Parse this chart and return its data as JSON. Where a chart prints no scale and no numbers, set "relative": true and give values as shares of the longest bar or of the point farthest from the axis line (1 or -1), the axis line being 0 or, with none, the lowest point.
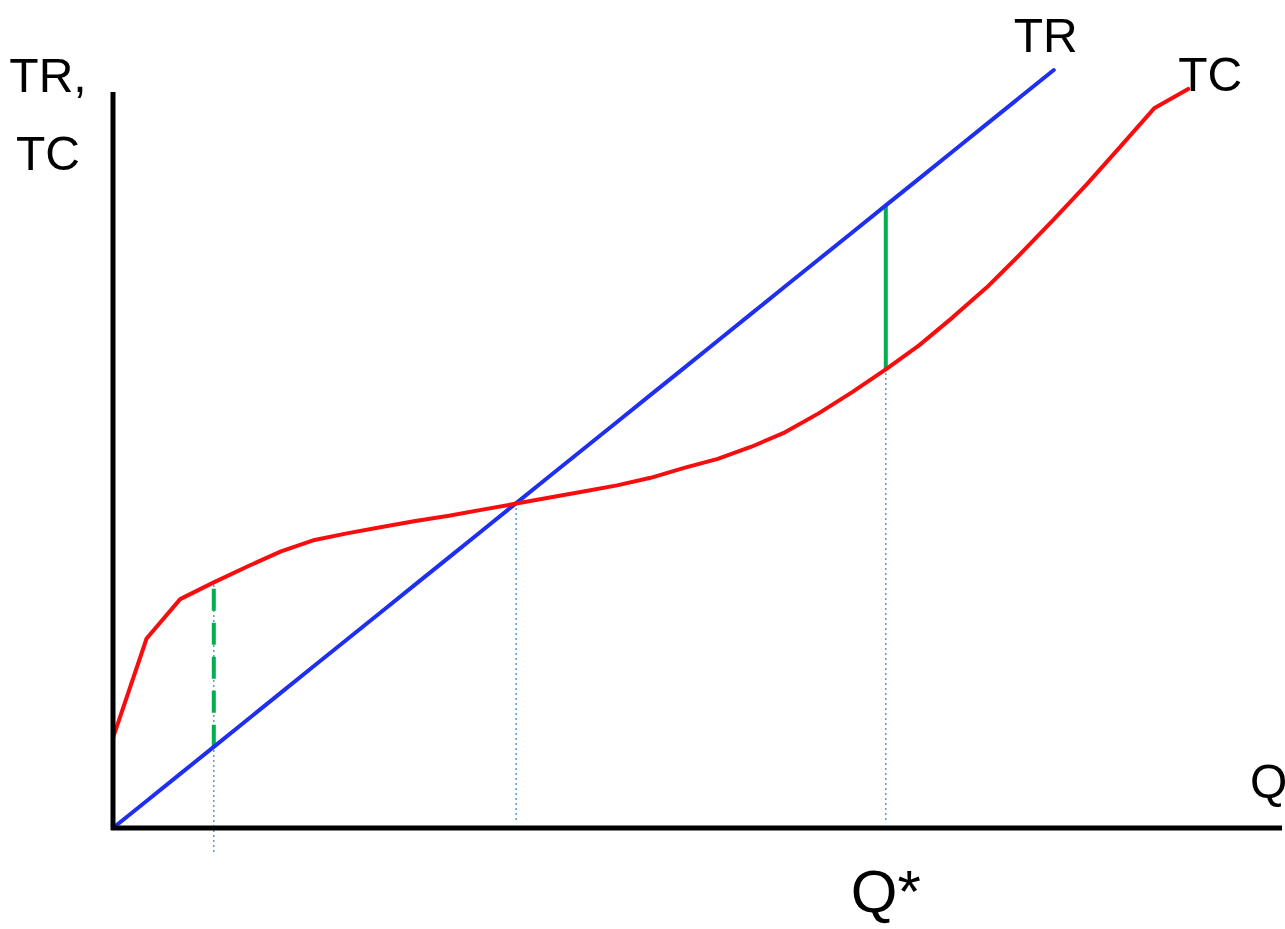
{
  "chart_data": {
    "type": "line",
    "relative": true,
    "xlabel": "Q",
    "ylabel": "TR, TC",
    "categories": [
      null,
      null,
      null,
      null,
      null,
      null,
      null,
      null,
      null,
      null,
      null,
      null,
      null,
      null,
      null,
      null,
      null,
      null,
      null,
      null,
      null,
      null,
      null,
      null,
      null,
      null,
      null,
      null,
      null,
      null,
      null,
      null,
      null,
      null,
      null,
      null
    ],
    "series": [
      {
        "name": "TR",
        "color": "#1f2ff0",
        "values": [
          0,
          0.0357,
          0.0714,
          0.1071,
          0.1429,
          0.1786,
          0.2143,
          0.25,
          0.2857,
          0.3214,
          0.3571,
          0.3929,
          0.4286,
          0.4643,
          0.5,
          0.5357,
          0.5714,
          0.6071,
          0.6429,
          0.6786,
          0.7143,
          0.75,
          0.7857,
          0.8214,
          0.8571,
          0.8929,
          0.9286,
          0.9643,
          1,
          null,
          null,
          null,
          null,
          null,
          null,
          null
        ]
      },
      {
        "name": "TC",
        "color": "#f70d0d",
        "values": [
          0.119,
          0.25,
          0.302,
          0.324,
          0.345,
          0.365,
          0.38,
          0.389,
          0.397,
          0.405,
          0.412,
          0.42,
          0.428,
          0.436,
          0.444,
          0.452,
          0.462,
          0.475,
          0.487,
          0.503,
          0.522,
          0.547,
          0.575,
          0.605,
          0.637,
          0.674,
          0.713,
          0.757,
          0.803,
          0.85,
          0.9,
          0.95,
          0.975,
          null,
          null,
          null
        ]
      }
    ],
    "annotations": [
      "Q*"
    ]
  }
}
